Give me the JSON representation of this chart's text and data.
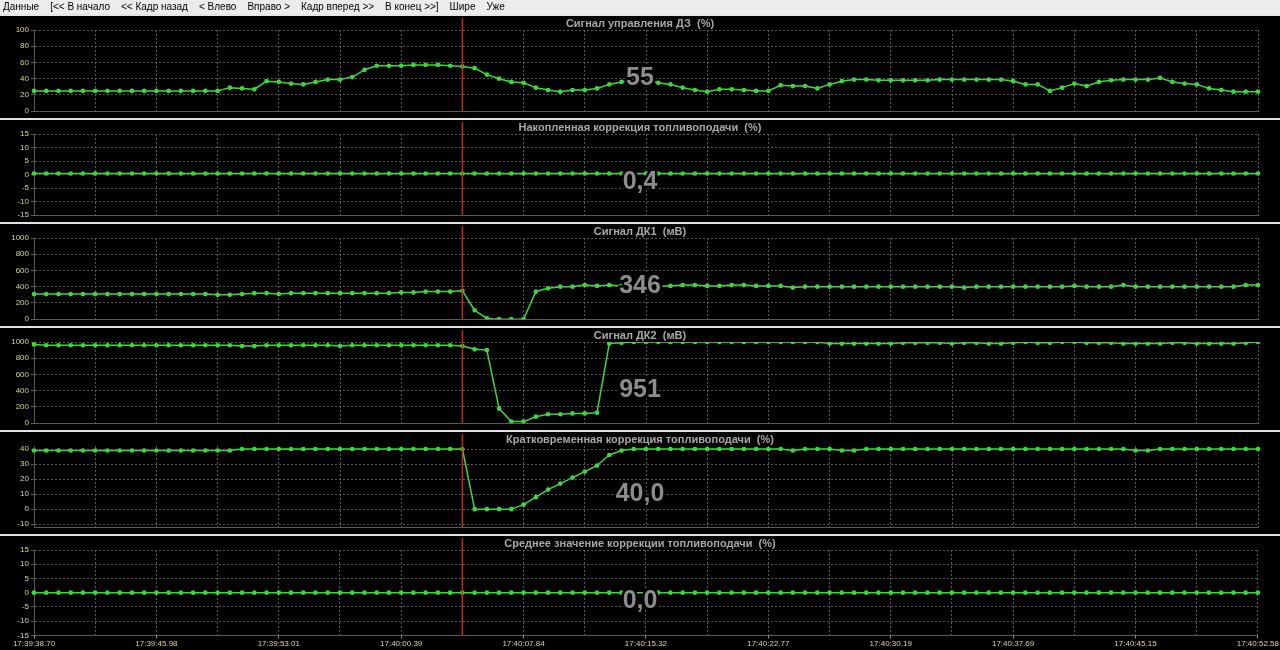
{
  "chart_data": [
    {
      "type": "other",
      "annotations": [
        "Данные",
        "[<< В начало",
        "<< Кадр назад",
        "< Влево",
        "Вправо >",
        "Кадр вперед >>",
        "В конец >>]",
        "Шире",
        "Уже"
      ]
    },
    {
      "type": "line",
      "title": "Сигнал управления ДЗ  (%)",
      "tick_labels": "y",
      "grid": true,
      "marker": "circle",
      "color": "#3fd63f",
      "categories": [
        null,
        null,
        null,
        null,
        null,
        null,
        null,
        null,
        null,
        null,
        null,
        null,
        null,
        null,
        null,
        null,
        null,
        null,
        null,
        null,
        null,
        null,
        null,
        null,
        null,
        null,
        null,
        null,
        null,
        null,
        null,
        null,
        null,
        null,
        null,
        null,
        null,
        null,
        null,
        null,
        null,
        null,
        null,
        null,
        null,
        null,
        null,
        null,
        null,
        null,
        null,
        null,
        null,
        null,
        null,
        null,
        null,
        null,
        null,
        null,
        null,
        null,
        null,
        null,
        null,
        null,
        null,
        null,
        null,
        null,
        null,
        null,
        null,
        null,
        null,
        null,
        null,
        null,
        null,
        null,
        null,
        null,
        null,
        null,
        null,
        null,
        null,
        null,
        null,
        null,
        null,
        null,
        null,
        null,
        null,
        null,
        null,
        null,
        null,
        null,
        null
      ],
      "values": [
        25,
        25,
        25,
        25,
        25,
        25,
        25,
        25,
        25,
        25,
        25,
        25,
        25,
        25,
        25,
        25,
        29,
        28,
        27,
        37,
        36,
        34,
        33,
        36,
        39,
        39,
        42,
        51,
        56,
        56,
        56,
        57,
        57,
        57,
        56,
        55,
        53,
        45,
        40,
        36,
        35,
        29,
        26,
        24,
        26,
        26,
        28,
        33,
        36,
        40,
        39,
        35,
        33,
        29,
        26,
        24,
        27,
        27,
        26,
        25,
        25,
        32,
        31,
        31,
        28,
        33,
        37,
        39,
        39,
        38,
        38,
        38,
        38,
        38,
        39,
        39,
        39,
        39,
        39,
        39,
        37,
        33,
        33,
        25,
        29,
        34,
        31,
        36,
        38,
        39,
        39,
        39,
        41,
        36,
        34,
        33,
        28,
        26,
        24,
        24,
        24
      ],
      "ylim": [
        0,
        100
      ],
      "yticks": [
        0,
        20,
        40,
        60,
        80,
        100
      ],
      "annotations": [
        "55"
      ]
    },
    {
      "type": "line",
      "title": "Накопленная коррекция топливоподачи  (%)",
      "tick_labels": "y",
      "grid": true,
      "marker": "circle",
      "color": "#3fd63f",
      "categories": [
        null,
        null,
        null,
        null,
        null,
        null,
        null,
        null,
        null,
        null,
        null,
        null,
        null,
        null,
        null,
        null,
        null,
        null,
        null,
        null,
        null,
        null,
        null,
        null,
        null,
        null,
        null,
        null,
        null,
        null,
        null,
        null,
        null,
        null,
        null,
        null,
        null,
        null,
        null,
        null,
        null,
        null,
        null,
        null,
        null,
        null,
        null,
        null,
        null,
        null,
        null,
        null,
        null,
        null,
        null,
        null,
        null,
        null,
        null,
        null,
        null,
        null,
        null,
        null,
        null,
        null,
        null,
        null,
        null,
        null,
        null,
        null,
        null,
        null,
        null,
        null,
        null,
        null,
        null,
        null,
        null,
        null,
        null,
        null,
        null,
        null,
        null,
        null,
        null,
        null,
        null,
        null,
        null,
        null,
        null,
        null,
        null,
        null,
        null,
        null,
        null
      ],
      "values": [
        0.4,
        0.4,
        0.4,
        0.4,
        0.4,
        0.4,
        0.4,
        0.4,
        0.4,
        0.4,
        0.4,
        0.4,
        0.4,
        0.4,
        0.4,
        0.4,
        0.4,
        0.4,
        0.4,
        0.4,
        0.4,
        0.4,
        0.4,
        0.4,
        0.4,
        0.4,
        0.4,
        0.4,
        0.4,
        0.4,
        0.4,
        0.4,
        0.4,
        0.4,
        0.4,
        0.4,
        0.4,
        0.4,
        0.4,
        0.4,
        0.4,
        0.4,
        0.4,
        0.4,
        0.4,
        0.4,
        0.4,
        0.4,
        0.4,
        0.4,
        0.4,
        0.4,
        0.4,
        0.4,
        0.4,
        0.4,
        0.4,
        0.4,
        0.4,
        0.4,
        0.4,
        0.4,
        0.4,
        0.4,
        0.4,
        0.4,
        0.4,
        0.4,
        0.4,
        0.4,
        0.4,
        0.4,
        0.4,
        0.4,
        0.4,
        0.4,
        0.4,
        0.4,
        0.4,
        0.4,
        0.4,
        0.4,
        0.4,
        0.4,
        0.4,
        0.4,
        0.4,
        0.4,
        0.4,
        0.4,
        0.4,
        0.4,
        0.4,
        0.4,
        0.4,
        0.4,
        0.4,
        0.4,
        0.4,
        0.4,
        0.4
      ],
      "ylim": [
        -15,
        15
      ],
      "yticks": [
        -15,
        -10,
        -5,
        0,
        5,
        10,
        15
      ],
      "annotations": [
        "0,4"
      ]
    },
    {
      "type": "line",
      "title": "Сигнал ДК1  (мВ)",
      "tick_labels": "y",
      "grid": true,
      "marker": "circle",
      "color": "#3fd63f",
      "categories": [
        null,
        null,
        null,
        null,
        null,
        null,
        null,
        null,
        null,
        null,
        null,
        null,
        null,
        null,
        null,
        null,
        null,
        null,
        null,
        null,
        null,
        null,
        null,
        null,
        null,
        null,
        null,
        null,
        null,
        null,
        null,
        null,
        null,
        null,
        null,
        null,
        null,
        null,
        null,
        null,
        null,
        null,
        null,
        null,
        null,
        null,
        null,
        null,
        null,
        null,
        null,
        null,
        null,
        null,
        null,
        null,
        null,
        null,
        null,
        null,
        null,
        null,
        null,
        null,
        null,
        null,
        null,
        null,
        null,
        null,
        null,
        null,
        null,
        null,
        null,
        null,
        null,
        null,
        null,
        null,
        null,
        null,
        null,
        null,
        null,
        null,
        null,
        null,
        null,
        null,
        null,
        null,
        null,
        null,
        null,
        null,
        null,
        null,
        null,
        null,
        null
      ],
      "values": [
        310,
        310,
        310,
        310,
        310,
        310,
        310,
        310,
        310,
        310,
        310,
        310,
        310,
        310,
        310,
        300,
        300,
        310,
        320,
        320,
        310,
        320,
        320,
        320,
        320,
        320,
        320,
        320,
        320,
        320,
        330,
        330,
        340,
        340,
        340,
        350,
        110,
        10,
        0,
        0,
        0,
        340,
        380,
        400,
        400,
        420,
        410,
        420,
        410,
        400,
        400,
        410,
        410,
        420,
        420,
        410,
        410,
        420,
        420,
        410,
        410,
        410,
        390,
        400,
        400,
        400,
        400,
        400,
        400,
        400,
        400,
        400,
        400,
        400,
        400,
        400,
        390,
        400,
        400,
        400,
        400,
        400,
        400,
        400,
        400,
        410,
        400,
        400,
        400,
        420,
        400,
        400,
        400,
        400,
        400,
        400,
        400,
        400,
        400,
        420,
        420
      ],
      "ylim": [
        0,
        1000
      ],
      "yticks": [
        0,
        200,
        400,
        600,
        800,
        1000
      ],
      "annotations": [
        "346"
      ]
    },
    {
      "type": "line",
      "title": "Сигнал ДК2  (мВ)",
      "tick_labels": "y",
      "grid": true,
      "marker": "circle",
      "color": "#3fd63f",
      "categories": [
        null,
        null,
        null,
        null,
        null,
        null,
        null,
        null,
        null,
        null,
        null,
        null,
        null,
        null,
        null,
        null,
        null,
        null,
        null,
        null,
        null,
        null,
        null,
        null,
        null,
        null,
        null,
        null,
        null,
        null,
        null,
        null,
        null,
        null,
        null,
        null,
        null,
        null,
        null,
        null,
        null,
        null,
        null,
        null,
        null,
        null,
        null,
        null,
        null,
        null,
        null,
        null,
        null,
        null,
        null,
        null,
        null,
        null,
        null,
        null,
        null,
        null,
        null,
        null,
        null,
        null,
        null,
        null,
        null,
        null,
        null,
        null,
        null,
        null,
        null,
        null,
        null,
        null,
        null,
        null,
        null,
        null,
        null,
        null,
        null,
        null,
        null,
        null,
        null,
        null,
        null,
        null,
        null,
        null,
        null,
        null,
        null,
        null,
        null,
        null,
        null
      ],
      "values": [
        970,
        960,
        960,
        960,
        960,
        960,
        960,
        960,
        960,
        960,
        960,
        960,
        960,
        960,
        960,
        960,
        960,
        950,
        950,
        960,
        960,
        960,
        960,
        960,
        960,
        950,
        960,
        960,
        960,
        960,
        960,
        960,
        960,
        960,
        960,
        950,
        910,
        900,
        180,
        20,
        20,
        80,
        110,
        110,
        120,
        120,
        130,
        980,
        990,
        1000,
        1000,
        1000,
        1000,
        1000,
        1000,
        1000,
        1000,
        1000,
        1000,
        1000,
        1000,
        1000,
        1000,
        1000,
        1000,
        980,
        980,
        980,
        980,
        980,
        980,
        990,
        990,
        990,
        990,
        980,
        990,
        990,
        980,
        980,
        990,
        1000,
        990,
        990,
        1000,
        1000,
        990,
        990,
        990,
        980,
        980,
        980,
        980,
        990,
        990,
        980,
        980,
        980,
        980,
        990,
        1000
      ],
      "ylim": [
        0,
        1000
      ],
      "yticks": [
        0,
        200,
        400,
        600,
        800,
        1000
      ],
      "annotations": [
        "951"
      ]
    },
    {
      "type": "line",
      "title": "Кратковременная коррекция топливоподачи  (%)",
      "tick_labels": "y",
      "grid": true,
      "marker": "circle",
      "color": "#3fd63f",
      "categories": [
        null,
        null,
        null,
        null,
        null,
        null,
        null,
        null,
        null,
        null,
        null,
        null,
        null,
        null,
        null,
        null,
        null,
        null,
        null,
        null,
        null,
        null,
        null,
        null,
        null,
        null,
        null,
        null,
        null,
        null,
        null,
        null,
        null,
        null,
        null,
        null,
        null,
        null,
        null,
        null,
        null,
        null,
        null,
        null,
        null,
        null,
        null,
        null,
        null,
        null,
        null,
        null,
        null,
        null,
        null,
        null,
        null,
        null,
        null,
        null,
        null,
        null,
        null,
        null,
        null,
        null,
        null,
        null,
        null,
        null,
        null,
        null,
        null,
        null,
        null,
        null,
        null,
        null,
        null,
        null,
        null,
        null,
        null,
        null,
        null,
        null,
        null,
        null,
        null,
        null,
        null,
        null,
        null,
        null,
        null,
        null,
        null,
        null,
        null,
        null,
        null
      ],
      "values": [
        39,
        39,
        39,
        39,
        39,
        39,
        39,
        39,
        39,
        39,
        39,
        39,
        39,
        39,
        39,
        39,
        39,
        40,
        40,
        40,
        40,
        40,
        40,
        40,
        40,
        40,
        40,
        40,
        40,
        40,
        40,
        40,
        40,
        40,
        40,
        40,
        0,
        0,
        0,
        0,
        3,
        8,
        13,
        17,
        21,
        25,
        29,
        36,
        39,
        40,
        40,
        40,
        40,
        40,
        40,
        40,
        40,
        40,
        40,
        40,
        40,
        40,
        39,
        40,
        40,
        40,
        39,
        39,
        40,
        40,
        40,
        40,
        40,
        40,
        40,
        40,
        40,
        40,
        40,
        40,
        40,
        40,
        40,
        40,
        40,
        40,
        40,
        40,
        40,
        40,
        39,
        39,
        40,
        40,
        40,
        40,
        40,
        40,
        40,
        40,
        40
      ],
      "ylim": [
        -12,
        42
      ],
      "yticks": [
        -10,
        0,
        10,
        20,
        30,
        40
      ],
      "annotations": [
        "40,0"
      ]
    },
    {
      "type": "line",
      "title": "Среднее значение коррекции топливоподачи  (%)",
      "grid": true,
      "marker": "circle",
      "color": "#3fd63f",
      "categories": [
        "17:39:38.70",
        null,
        null,
        null,
        null,
        null,
        null,
        null,
        null,
        null,
        "17:39:45.98",
        null,
        null,
        null,
        null,
        null,
        null,
        null,
        null,
        null,
        "17:39:53.01",
        null,
        null,
        null,
        null,
        null,
        null,
        null,
        null,
        null,
        "17:40:00.39",
        null,
        null,
        null,
        null,
        null,
        null,
        null,
        null,
        null,
        "17:40:07.84",
        null,
        null,
        null,
        null,
        null,
        null,
        null,
        null,
        null,
        "17:40:15.32",
        null,
        null,
        null,
        null,
        null,
        null,
        null,
        null,
        null,
        "17:40:22.77",
        null,
        null,
        null,
        null,
        null,
        null,
        null,
        null,
        null,
        "17:40:30.19",
        null,
        null,
        null,
        null,
        null,
        null,
        null,
        null,
        null,
        "17:40:37.69",
        null,
        null,
        null,
        null,
        null,
        null,
        null,
        null,
        null,
        "17:40:45.15",
        null,
        null,
        null,
        null,
        null,
        null,
        null,
        null,
        null,
        "17:40:52.58"
      ],
      "values": [
        0,
        0,
        0,
        0,
        0,
        0,
        0,
        0,
        0,
        0,
        0,
        0,
        0,
        0,
        0,
        0,
        0,
        0,
        0,
        0,
        0,
        0,
        0,
        0,
        0,
        0,
        0,
        0,
        0,
        0,
        0,
        0,
        0,
        0,
        0,
        0,
        0,
        0,
        0,
        0,
        0,
        0,
        0,
        0,
        0,
        0,
        0,
        0,
        0,
        0,
        0,
        0,
        0,
        0,
        0,
        0,
        0,
        0,
        0,
        0,
        0,
        0,
        0,
        0,
        0,
        0,
        0,
        0,
        0,
        0,
        0,
        0,
        0,
        0,
        0,
        0,
        0,
        0,
        0,
        0,
        0,
        0,
        0,
        0,
        0,
        0,
        0,
        0,
        0,
        0,
        0,
        0,
        0,
        0,
        0,
        0,
        0,
        0,
        0,
        0,
        0
      ],
      "ylim": [
        -15,
        15
      ],
      "yticks": [
        -15,
        -10,
        -5,
        0,
        5,
        10,
        15
      ],
      "annotations": [
        "0,0"
      ]
    }
  ]
}
